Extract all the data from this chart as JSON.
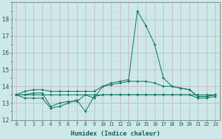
{
  "x": [
    0,
    1,
    2,
    3,
    4,
    5,
    6,
    7,
    8,
    9,
    10,
    11,
    12,
    13,
    14,
    15,
    16,
    17,
    18,
    19,
    20,
    21,
    22,
    23
  ],
  "line1": [
    13.5,
    13.5,
    13.6,
    13.6,
    12.8,
    13.0,
    13.1,
    13.1,
    13.5,
    13.3,
    14.0,
    14.2,
    14.3,
    14.4,
    18.5,
    17.6,
    16.5,
    14.5,
    14.0,
    13.9,
    13.8,
    13.4,
    13.4,
    13.5
  ],
  "line2": [
    13.5,
    13.3,
    13.3,
    13.3,
    12.7,
    12.8,
    13.0,
    13.2,
    12.5,
    13.4,
    13.5,
    13.5,
    13.5,
    13.5,
    13.5,
    13.5,
    13.5,
    13.5,
    13.5,
    13.5,
    13.5,
    13.3,
    13.3,
    13.4
  ],
  "line3": [
    13.5,
    13.7,
    13.8,
    13.8,
    13.7,
    13.7,
    13.7,
    13.7,
    13.7,
    13.7,
    14.0,
    14.1,
    14.2,
    14.3,
    14.3,
    14.3,
    14.2,
    14.0,
    14.0,
    13.9,
    13.8,
    13.4,
    13.4,
    13.5
  ],
  "line4": [
    13.5,
    13.5,
    13.5,
    13.5,
    13.5,
    13.5,
    13.5,
    13.5,
    13.5,
    13.5,
    13.5,
    13.5,
    13.5,
    13.5,
    13.5,
    13.5,
    13.5,
    13.5,
    13.5,
    13.5,
    13.5,
    13.5,
    13.5,
    13.5
  ],
  "line_color": "#1a7a6a",
  "bg_color": "#cce8e8",
  "grid_major_color": "#c8b8b8",
  "grid_minor_color": "#ddd0d0",
  "xlabel": "Humidex (Indice chaleur)",
  "ylim": [
    12,
    19
  ],
  "xlim": [
    -0.5,
    23.5
  ],
  "yticks": [
    12,
    13,
    14,
    15,
    16,
    17,
    18
  ],
  "xticks": [
    0,
    1,
    2,
    3,
    4,
    5,
    6,
    7,
    8,
    9,
    10,
    11,
    12,
    13,
    14,
    15,
    16,
    17,
    18,
    19,
    20,
    21,
    22,
    23
  ]
}
